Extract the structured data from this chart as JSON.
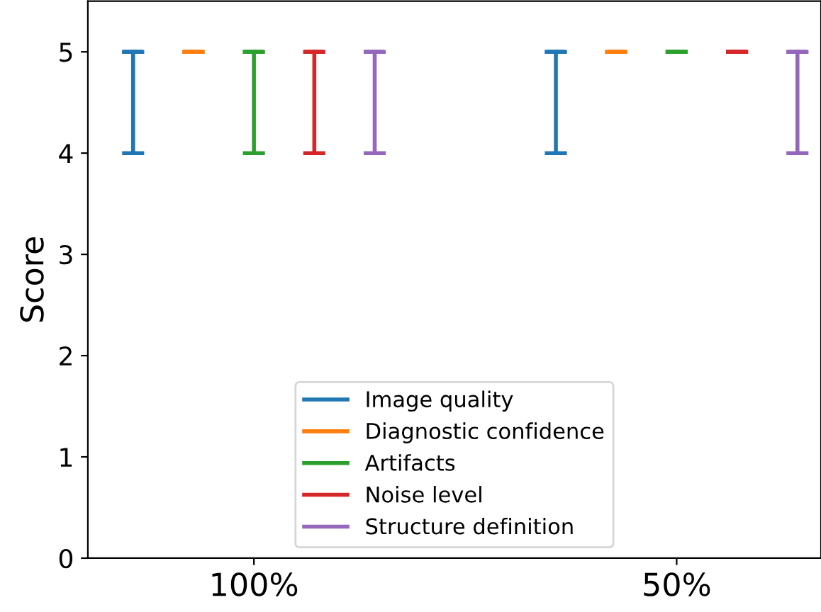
{
  "chart_data": {
    "type": "box",
    "ylabel": "Score",
    "categories": [
      null,
      null,
      "100%",
      null,
      null,
      null,
      null,
      null,
      null,
      "50%",
      null,
      null
    ],
    "series": [
      {
        "name": "Image quality",
        "color": "#1f77b4",
        "boxes": [
          {
            "low": 4,
            "q1": 5,
            "median": 5,
            "q3": 5,
            "high": 5
          },
          null,
          null,
          null,
          null,
          null,
          null,
          {
            "low": 4,
            "q1": 5,
            "median": 5,
            "q3": 5,
            "high": 5
          },
          null,
          null,
          null,
          null
        ]
      },
      {
        "name": "Diagnostic confidence",
        "color": "#ff7f0e",
        "boxes": [
          null,
          {
            "low": 5,
            "q1": 5,
            "median": 5,
            "q3": 5,
            "high": 5
          },
          null,
          null,
          null,
          null,
          null,
          null,
          {
            "low": 5,
            "q1": 5,
            "median": 5,
            "q3": 5,
            "high": 5
          },
          null,
          null,
          null
        ]
      },
      {
        "name": "Artifacts",
        "color": "#2ca02c",
        "boxes": [
          null,
          null,
          {
            "low": 4,
            "q1": 5,
            "median": 5,
            "q3": 5,
            "high": 5
          },
          null,
          null,
          null,
          null,
          null,
          null,
          {
            "low": 5,
            "q1": 5,
            "median": 5,
            "q3": 5,
            "high": 5
          },
          null,
          null
        ]
      },
      {
        "name": "Noise level",
        "color": "#d62728",
        "boxes": [
          null,
          null,
          null,
          {
            "low": 4,
            "q1": 5,
            "median": 5,
            "q3": 5,
            "high": 5
          },
          null,
          null,
          null,
          null,
          null,
          null,
          {
            "low": 5,
            "q1": 5,
            "median": 5,
            "q3": 5,
            "high": 5
          },
          null
        ]
      },
      {
        "name": "Structure definition",
        "color": "#9467bd",
        "boxes": [
          null,
          null,
          null,
          null,
          {
            "low": 4,
            "q1": 5,
            "median": 5,
            "q3": 5,
            "high": 5
          },
          null,
          null,
          null,
          null,
          null,
          null,
          {
            "low": 4,
            "q1": 5,
            "median": 5,
            "q3": 5,
            "high": 5
          }
        ]
      }
    ],
    "ylim": [
      0,
      5.5
    ],
    "yticks": [
      0,
      1,
      2,
      3,
      4,
      5
    ],
    "legend": "bottom",
    "grid": false
  }
}
